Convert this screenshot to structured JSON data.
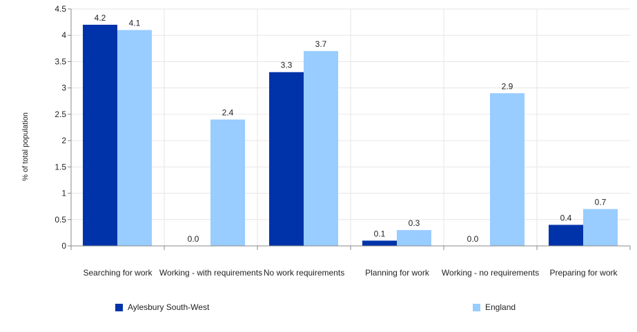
{
  "chart_data": {
    "type": "bar",
    "title": "",
    "xlabel": "",
    "ylabel": "% of total population",
    "ylim": [
      0,
      4.5
    ],
    "yticks": [
      "0",
      "0.5",
      "1",
      "1.5",
      "2",
      "2.5",
      "3",
      "3.5",
      "4",
      "4.5"
    ],
    "grid": true,
    "legend_position": "bottom",
    "categories": [
      "Searching for work",
      "Working - with requirements",
      "No work requirements",
      "Planning for work",
      "Working - no requirements",
      "Preparing for work"
    ],
    "series": [
      {
        "name": "Aylesbury South-West",
        "color": "#0033aa",
        "values": [
          4.2,
          0.0,
          3.3,
          0.1,
          0.0,
          0.4
        ],
        "labels": [
          "4.2",
          "0.0",
          "3.3",
          "0.1",
          "0.0",
          "0.4"
        ]
      },
      {
        "name": "England",
        "color": "#99ccff",
        "values": [
          4.1,
          2.4,
          3.7,
          0.3,
          2.9,
          0.7
        ],
        "labels": [
          "4.1",
          "2.4",
          "3.7",
          "0.3",
          "2.9",
          "0.7"
        ]
      }
    ]
  }
}
